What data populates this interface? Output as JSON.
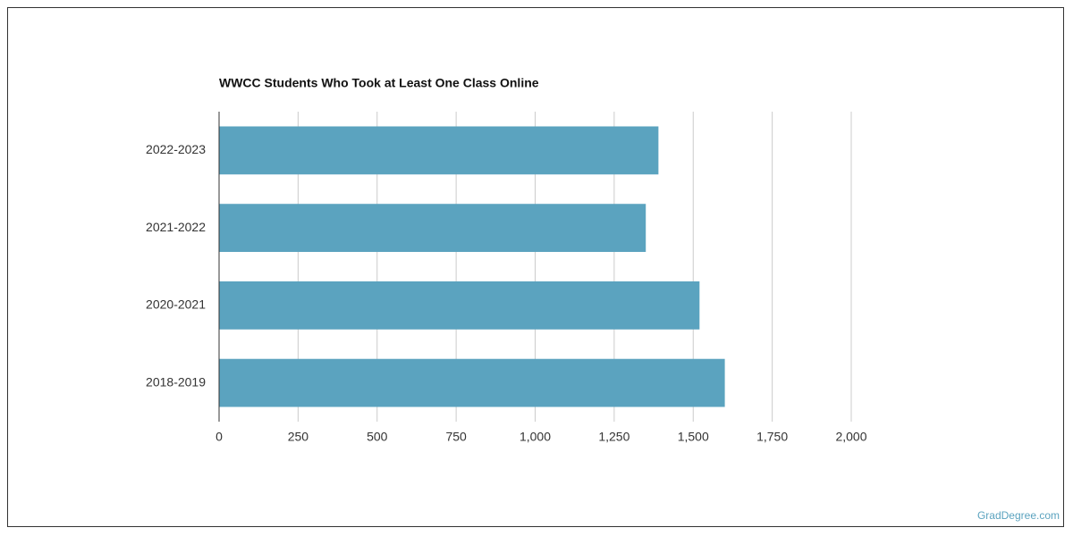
{
  "chart_data": {
    "type": "hbar",
    "title": "WWCC Students Who Took at Least One Class Online",
    "categories": [
      "2022-2023",
      "2021-2022",
      "2020-2021",
      "2018-2019"
    ],
    "values": [
      1390,
      1350,
      1520,
      1600
    ],
    "color": "#5ba3bf",
    "xlim": [
      0,
      2000
    ],
    "xticks": [
      0,
      250,
      500,
      750,
      {
        "value": 1000,
        "label": "1,000"
      },
      {
        "value": 1250,
        "label": "1,250"
      },
      {
        "value": 1500,
        "label": "1,500"
      },
      {
        "value": 1750,
        "label": "1,750"
      },
      {
        "value": 2000,
        "label": "2,000"
      }
    ],
    "grid": true
  },
  "footer": {
    "text": "GradDegree.com"
  }
}
